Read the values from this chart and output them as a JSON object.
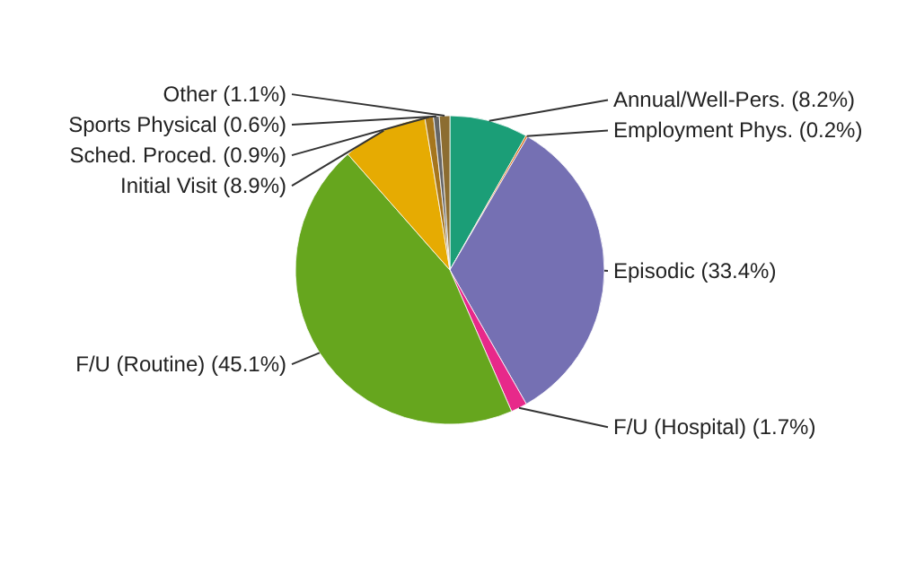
{
  "chart_data": {
    "type": "pie",
    "categories": [
      "Annual/Well-Pers.",
      "Employment Phys.",
      "Episodic",
      "F/U (Hospital)",
      "F/U (Routine)",
      "Initial Visit",
      "Sched. Proced.",
      "Sports Physical",
      "Other"
    ],
    "values": [
      8.2,
      0.2,
      33.4,
      1.7,
      45.1,
      8.9,
      0.9,
      0.6,
      1.1
    ],
    "value_labels": [
      "(8.2%)",
      "(0.2%)",
      "(33.4%)",
      "(1.7%)",
      "(45.1%)",
      "(8.9%)",
      "(0.9%)",
      "(0.6%)",
      "(1.1%)"
    ],
    "colors": [
      "#1b9e77",
      "#d95f02",
      "#7570b3",
      "#e7298a",
      "#66a61e",
      "#e6ab02",
      "#a6761d",
      "#666666",
      "#8c6d31"
    ]
  }
}
